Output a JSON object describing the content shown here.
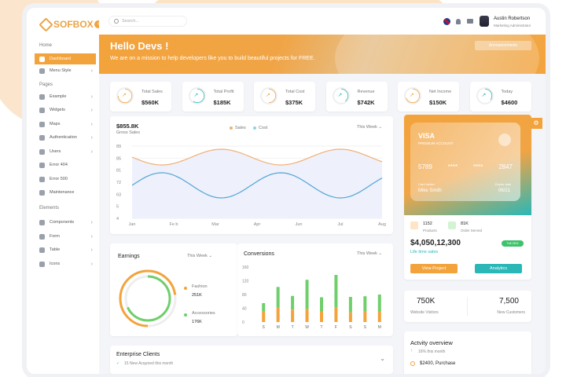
{
  "brand": "SOFBOX",
  "search": {
    "placeholder": "Search..."
  },
  "user": {
    "name": "Austin Robertson",
    "role": "Marketing Administrator"
  },
  "sidebar": {
    "sections": [
      {
        "label": "Home"
      },
      {
        "label": "Pages"
      },
      {
        "label": "Elements"
      }
    ],
    "items": [
      {
        "label": "Dashboard"
      },
      {
        "label": "Menu Style"
      },
      {
        "label": "Example"
      },
      {
        "label": "Widgets"
      },
      {
        "label": "Maps"
      },
      {
        "label": "Authentication"
      },
      {
        "label": "Users"
      },
      {
        "label": "Error 404"
      },
      {
        "label": "Error 500"
      },
      {
        "label": "Maintenance"
      },
      {
        "label": "Components"
      },
      {
        "label": "Form"
      },
      {
        "label": "Table"
      },
      {
        "label": "Icons"
      }
    ]
  },
  "hero": {
    "title": "Hello Devs !",
    "subtitle": "We are on a mission to help developers like you to build beautiful projects for FREE.",
    "button": "Announcements"
  },
  "stats": [
    {
      "label": "Total Sales",
      "value": "$560K",
      "color": "#f3a33b",
      "pct": 0.75
    },
    {
      "label": "Total Profit",
      "value": "$185K",
      "color": "#2ab7b7",
      "pct": 0.6
    },
    {
      "label": "Total Cost",
      "value": "$375K",
      "color": "#f3a33b",
      "pct": 0.5
    },
    {
      "label": "Revenue",
      "value": "$742K",
      "color": "#2ab7b7",
      "pct": 0.4
    },
    {
      "label": "Net Income",
      "value": "$150K",
      "color": "#f3a33b",
      "pct": 0.7
    },
    {
      "label": "Today",
      "value": "$4600",
      "color": "#2ab7b7",
      "pct": 0.35
    }
  ],
  "gross": {
    "value": "$855.8K",
    "label": "Gross Sales",
    "period": "This Week"
  },
  "chart_data": [
    {
      "type": "line",
      "title": "Gross Sales",
      "categories": [
        "Jan",
        "Fe b",
        "Mar",
        "Apr",
        "Jun",
        "Jul",
        "Aug"
      ],
      "yticks": [
        "89",
        "85",
        "81",
        "72",
        "63",
        "5",
        "4"
      ],
      "series": [
        {
          "name": "Sales",
          "color": "#f0b073"
        },
        {
          "name": "Cost",
          "color": "#8ad4ea"
        }
      ]
    },
    {
      "type": "bar",
      "title": "Conversions",
      "categories": [
        "S",
        "M",
        "T",
        "W",
        "T",
        "F",
        "S",
        "S",
        "M"
      ],
      "yticks": [
        "160",
        "120",
        "80",
        "40",
        "0"
      ],
      "series": [
        {
          "name": "orange",
          "color": "#f3a33b",
          "values": [
            30,
            42,
            36,
            38,
            32,
            42,
            28,
            32,
            30
          ]
        },
        {
          "name": "green",
          "color": "#6fcf6b",
          "values": [
            25,
            60,
            40,
            85,
            40,
            95,
            45,
            43,
            50
          ]
        }
      ],
      "ylim": [
        0,
        160
      ]
    }
  ],
  "earnings": {
    "title": "Earnings",
    "period": "This Week",
    "fashion_label": "Fashion",
    "fashion_value": "251K",
    "access_label": "Accessories",
    "access_value": "176K"
  },
  "conversions": {
    "title": "Conversions",
    "period": "This Week"
  },
  "enterprise": {
    "title": "Enterprise Clients",
    "sub": "15 New Acquired this month"
  },
  "visa": {
    "brand": "VISA",
    "sub": "PREMIUM ACCOUNT",
    "n1": "5789",
    "n2": "****",
    "n3": "****",
    "n4": "2847",
    "holder_label": "Card holder",
    "holder": "Mike Smith",
    "exp_label": "Expire date",
    "exp": "06/21"
  },
  "wallet": {
    "products_count": "1152",
    "products_label": "Products",
    "orders_count": "81K",
    "orders_label": "Order Served",
    "total": "$4,050,12,300",
    "total_label": "Life time sales",
    "badge": "Toll 26%",
    "btn1": "View Project",
    "btn2": "Analytics"
  },
  "visitors": {
    "left_value": "750K",
    "left_label": "Website Visitors",
    "right_value": "7,500",
    "right_label": "New Customers"
  },
  "activity": {
    "title": "Actvity overview",
    "sub": "16% this month",
    "item": "$2400, Purchase"
  }
}
